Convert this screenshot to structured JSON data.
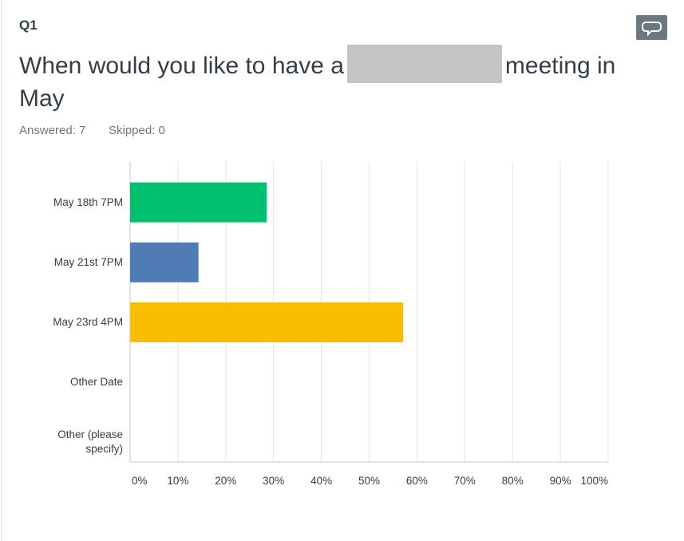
{
  "question": {
    "number": "Q1",
    "title_before": "When would you like to have a",
    "title_after": "meeting in May",
    "answered": "Answered: 7",
    "skipped": "Skipped: 0"
  },
  "chart_data": {
    "type": "hbar",
    "categories": [
      "May 18th 7PM",
      "May 21st 7PM",
      "May 23rd 4PM",
      "Other Date",
      "Other (please specify)"
    ],
    "values": [
      28.6,
      14.3,
      57.1,
      0,
      0
    ],
    "colors": [
      "#00bf6f",
      "#507cb6",
      "#f9be00",
      "#00bf6f",
      "#507cb6"
    ],
    "xlim": [
      0,
      100
    ],
    "xticks": [
      {
        "value": 0,
        "label": "0%"
      },
      {
        "value": 10,
        "label": "10%"
      },
      {
        "value": 20,
        "label": "20%"
      },
      {
        "value": 30,
        "label": "30%"
      },
      {
        "value": 40,
        "label": "40%"
      },
      {
        "value": 50,
        "label": "50%"
      },
      {
        "value": 60,
        "label": "60%"
      },
      {
        "value": 70,
        "label": "70%"
      },
      {
        "value": 80,
        "label": "80%"
      },
      {
        "value": 90,
        "label": "90%"
      },
      {
        "value": 100,
        "label": "100%"
      }
    ],
    "grid": true
  }
}
